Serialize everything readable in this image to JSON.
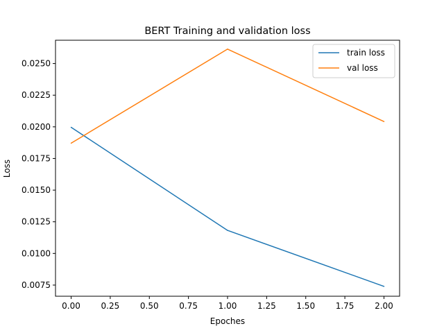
{
  "chart_data": {
    "type": "line",
    "title": "BERT Training and validation loss",
    "xlabel": "Epoches",
    "ylabel": "Loss",
    "x": [
      0,
      1,
      2
    ],
    "xlim": [
      -0.1,
      2.1
    ],
    "ylim": [
      0.00662,
      0.02684
    ],
    "xticks": [
      0.0,
      0.25,
      0.5,
      0.75,
      1.0,
      1.25,
      1.5,
      1.75,
      2.0
    ],
    "xtick_labels": [
      "0.00",
      "0.25",
      "0.50",
      "0.75",
      "1.00",
      "1.25",
      "1.50",
      "1.75",
      "2.00"
    ],
    "yticks": [
      0.0075,
      0.01,
      0.0125,
      0.015,
      0.0175,
      0.02,
      0.0225,
      0.025
    ],
    "ytick_labels": [
      "0.0075",
      "0.0100",
      "0.0125",
      "0.0150",
      "0.0175",
      "0.0200",
      "0.0225",
      "0.0250"
    ],
    "grid": false,
    "legend_position": "top-right",
    "series": [
      {
        "name": "train loss",
        "color": "#1f77b4",
        "values": [
          0.01996,
          0.01182,
          0.0074
        ]
      },
      {
        "name": "val loss",
        "color": "#ff7f0e",
        "values": [
          0.01871,
          0.02614,
          0.02042
        ]
      }
    ]
  }
}
